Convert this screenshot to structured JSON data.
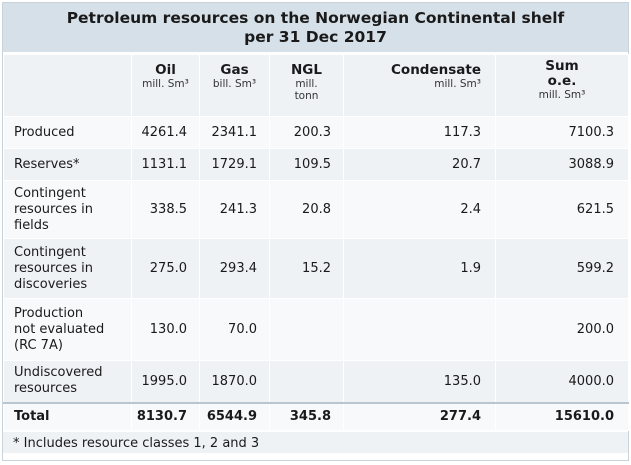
{
  "title_line1": "Petroleum resources on the Norwegian Continental shelf",
  "title_line2": "per 31 Dec 2017",
  "columns": [
    {
      "name": "Oil",
      "unit": "mill. Sm³"
    },
    {
      "name": "Gas",
      "unit": "bill. Sm³"
    },
    {
      "name": "NGL",
      "unit_line1": "mill.",
      "unit_line2": "tonn"
    },
    {
      "name": "Condensate",
      "unit": "mill. Sm³"
    },
    {
      "name_line1": "Sum",
      "name_line2": "o.e.",
      "unit": "mill. Sm³"
    }
  ],
  "rows": [
    {
      "label": "Produced",
      "oil": "4261.4",
      "gas": "2341.1",
      "ngl": "200.3",
      "condensate": "117.3",
      "sum": "7100.3"
    },
    {
      "label": "Reserves*",
      "oil": "1131.1",
      "gas": "1729.1",
      "ngl": "109.5",
      "condensate": "20.7",
      "sum": "3088.9"
    },
    {
      "label_lines": [
        "Contingent",
        "resources in",
        "fields"
      ],
      "oil": "338.5",
      "gas": "241.3",
      "ngl": "20.8",
      "condensate": "2.4",
      "sum": "621.5"
    },
    {
      "label_lines": [
        "Contingent",
        "resources in",
        "discoveries"
      ],
      "oil": "275.0",
      "gas": "293.4",
      "ngl": "15.2",
      "condensate": "1.9",
      "sum": "599.2"
    },
    {
      "label_lines": [
        "Production",
        "not evaluated",
        "(RC 7A)"
      ],
      "oil": "130.0",
      "gas": "70.0",
      "ngl": "",
      "condensate": "",
      "sum": "200.0"
    },
    {
      "label_lines": [
        "Undiscovered",
        "resources"
      ],
      "oil": "1995.0",
      "gas": "1870.0",
      "ngl": "",
      "condensate": "135.0",
      "sum": "4000.0"
    }
  ],
  "total": {
    "label": "Total",
    "oil": "8130.7",
    "gas": "6544.9",
    "ngl": "345.8",
    "condensate": "277.4",
    "sum": "15610.0"
  },
  "footnote": "* Includes resource classes 1, 2 and 3"
}
